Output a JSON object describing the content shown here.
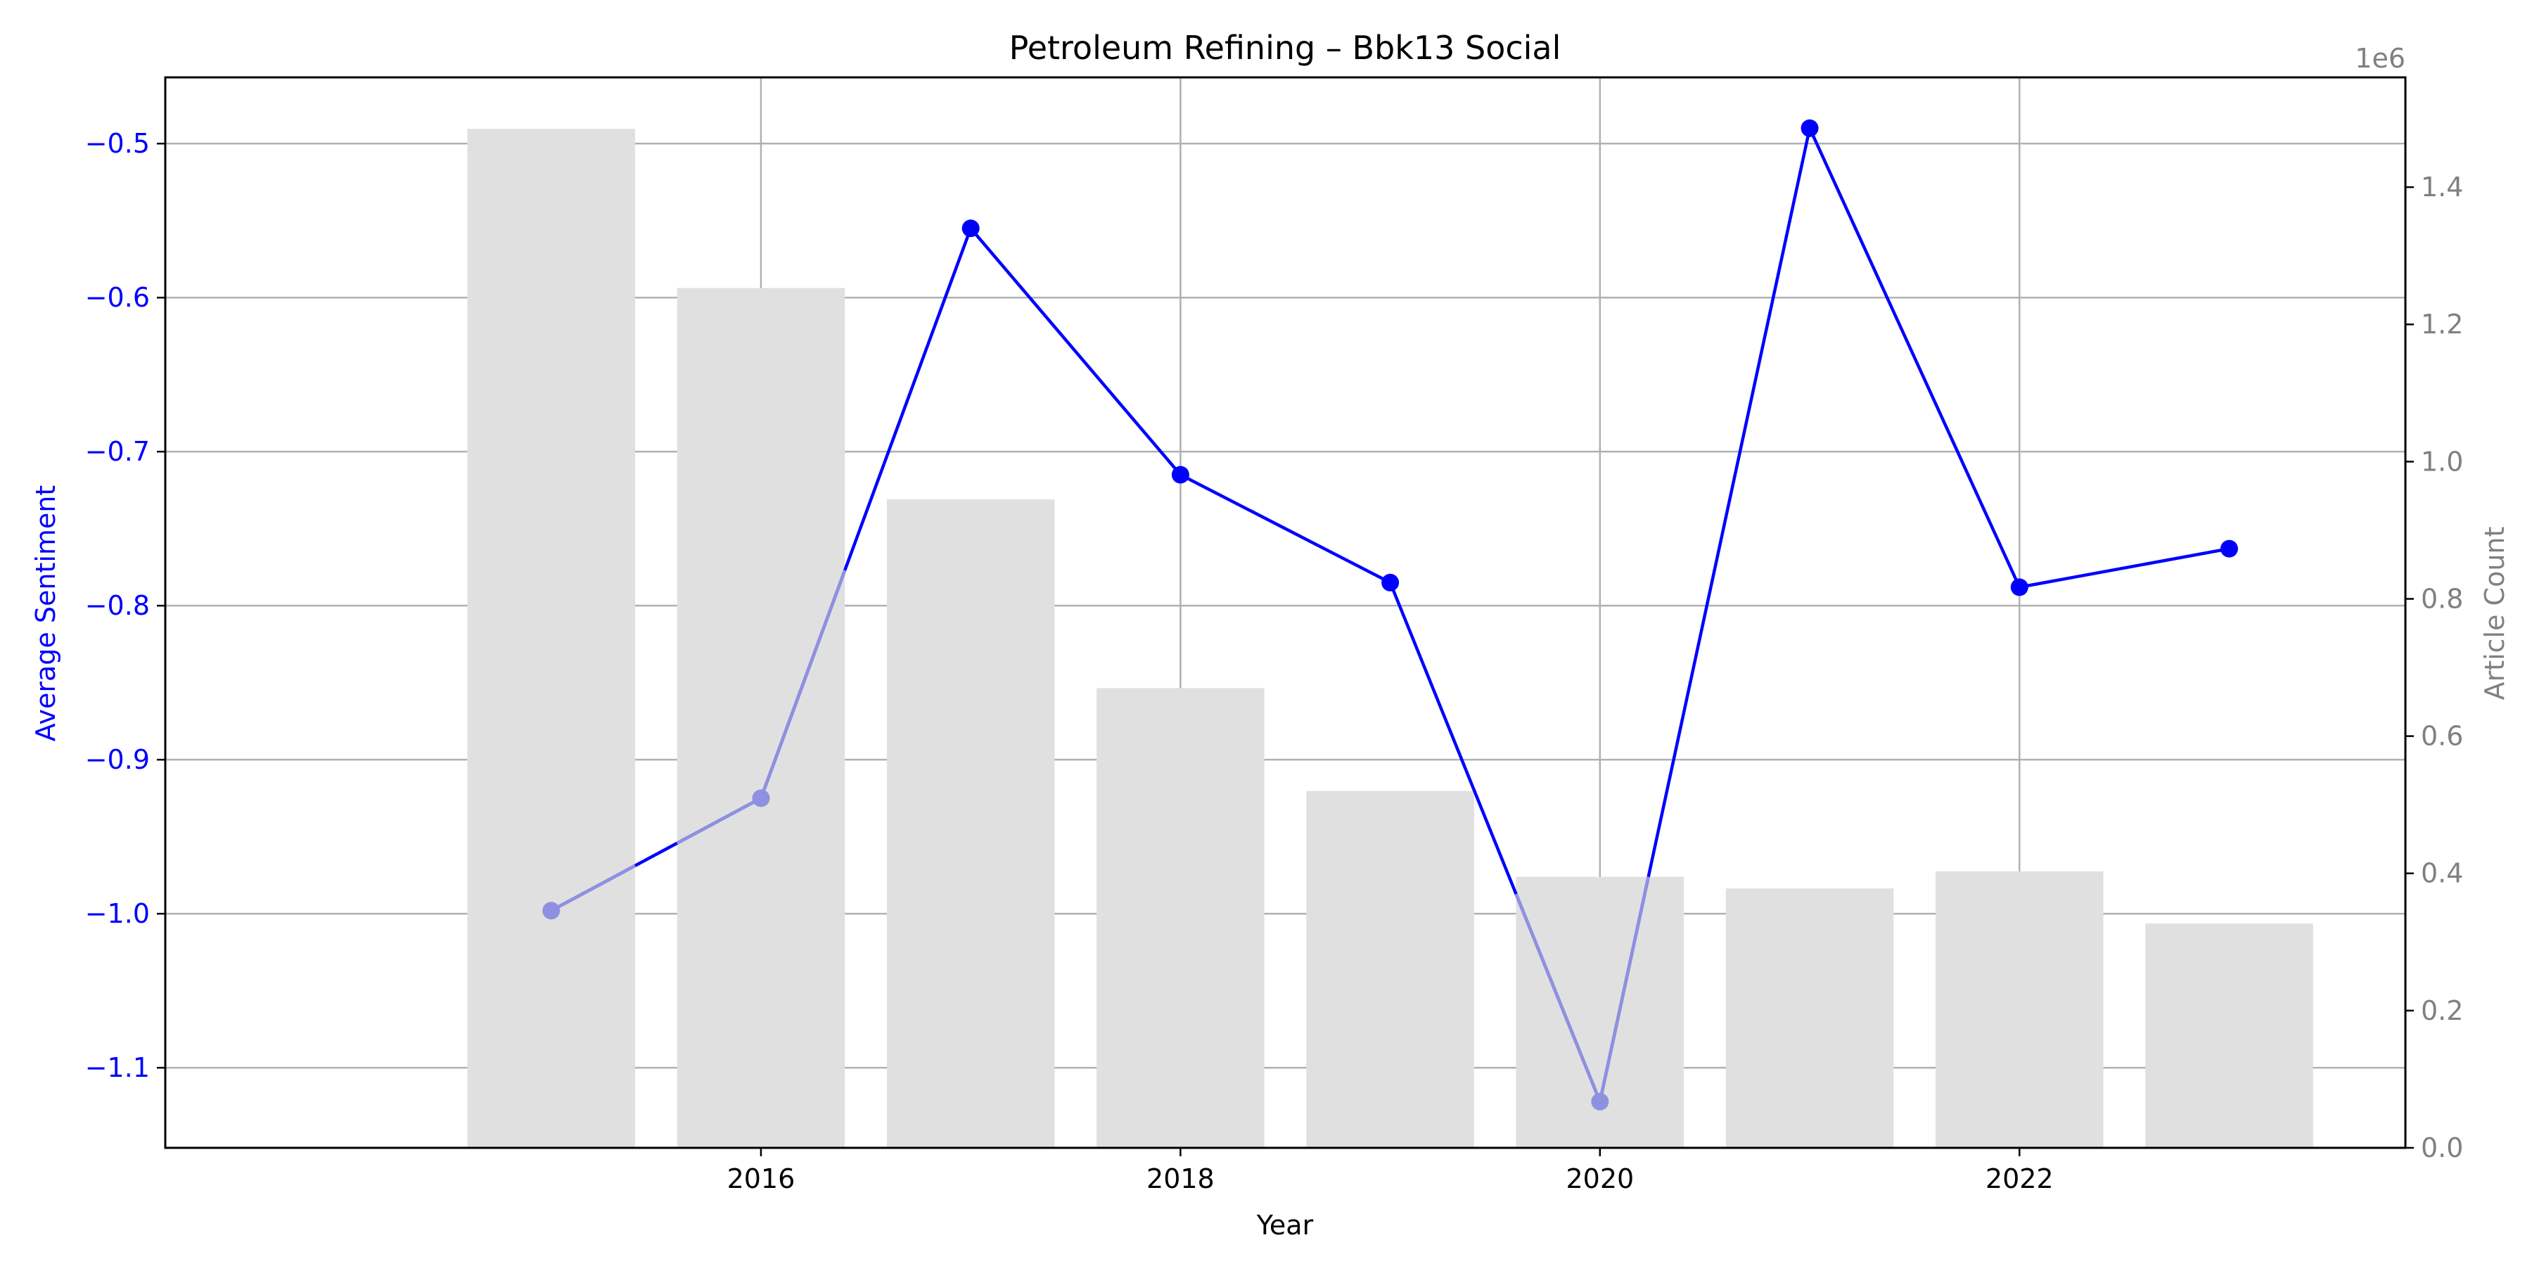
{
  "chart_data": {
    "type": "bar",
    "title": "Petroleum Refining – Bbk13 Social",
    "xlabel": "Year",
    "ylabel": "Average Sentiment",
    "y2label": "Article Count",
    "y2_offset_text": "1e6",
    "years": [
      2015,
      2016,
      2017,
      2018,
      2019,
      2020,
      2021,
      2022,
      2023
    ],
    "x_ticks": [
      "2016",
      "2018",
      "2020",
      "2022"
    ],
    "x_tick_values": [
      2016,
      2018,
      2020,
      2022
    ],
    "xlim": [
      2013.16,
      2023.84
    ],
    "ylim": [
      -1.152,
      -0.457
    ],
    "y_ticks": [
      "−0.5",
      "−0.6",
      "−0.7",
      "−0.8",
      "−0.9",
      "−1.0",
      "−1.1"
    ],
    "y_tick_values": [
      -0.5,
      -0.6,
      -0.7,
      -0.8,
      -0.9,
      -1.0,
      -1.1
    ],
    "y2lim": [
      0,
      1.56
    ],
    "y2_ticks": [
      "0.0",
      "0.2",
      "0.4",
      "0.6",
      "0.8",
      "1.0",
      "1.2",
      "1.4"
    ],
    "y2_tick_values": [
      0.0,
      0.2,
      0.4,
      0.6,
      0.8,
      1.0,
      1.2,
      1.4
    ],
    "grid": true,
    "series": [
      {
        "name": "Article Count",
        "kind": "bar",
        "axis": "right",
        "color": "#e0e0e0",
        "values": [
          1.485,
          1.253,
          0.945,
          0.67,
          0.52,
          0.395,
          0.378,
          0.403,
          0.327
        ]
      },
      {
        "name": "Average Sentiment",
        "kind": "line",
        "axis": "left",
        "color": "#0000ff",
        "values": [
          -0.998,
          -0.925,
          -0.555,
          -0.715,
          -0.785,
          -1.122,
          -0.49,
          -0.788,
          -0.763
        ]
      }
    ],
    "colors": {
      "sentiment": "#0000ff",
      "overlay_point": "#9090e0",
      "bars": "#e0e0e0",
      "count_axis": "#808080",
      "grid": "#b0b0b0"
    }
  }
}
